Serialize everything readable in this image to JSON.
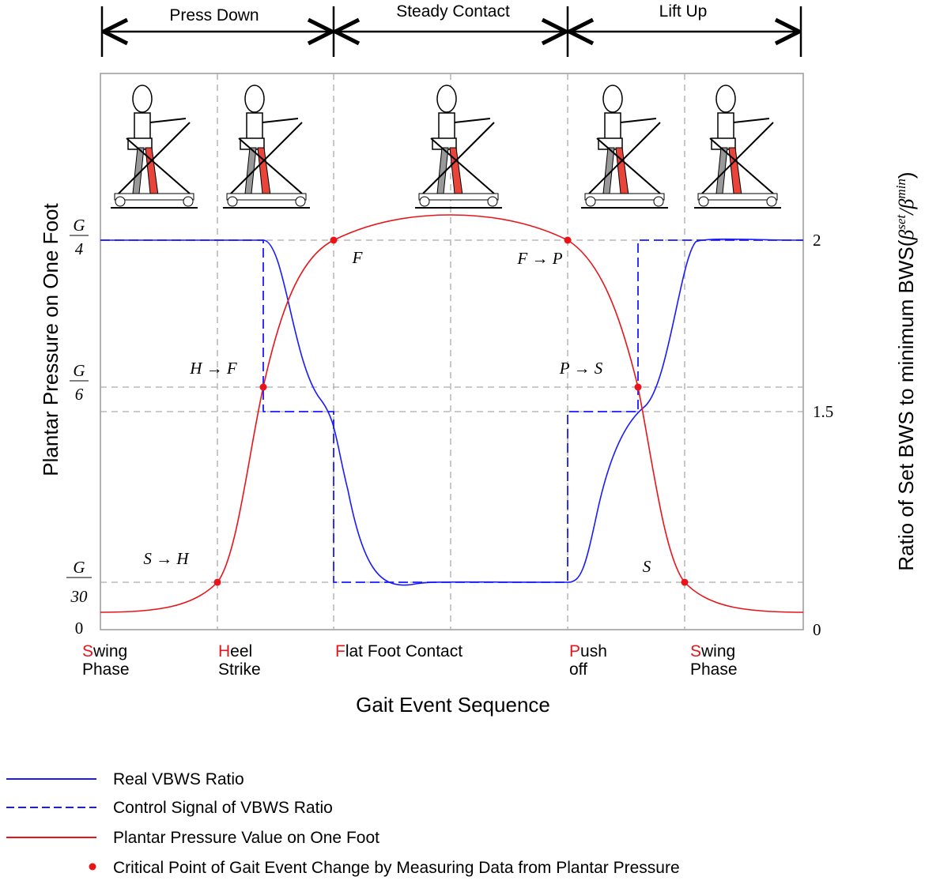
{
  "phases": [
    "Press Down",
    "Steady Contact",
    "Lift Up"
  ],
  "y_label": "Plantar Pressure on One Foot",
  "y2_label": {
    "text": "Ratio of Set BWS to minimum BWS(",
    "beta1": "β",
    "sup1": "set",
    "slash": "/",
    "beta2": "β",
    "sup2": "min",
    "close": ")"
  },
  "y_ticks": [
    {
      "num": "G",
      "den": "4"
    },
    {
      "num": "G",
      "den": "6"
    },
    {
      "num": "G",
      "den": "30"
    },
    "0"
  ],
  "y2_ticks": [
    "2",
    "1.5",
    "0"
  ],
  "annotations": [
    "S → H",
    "H → F",
    "F",
    "F → P",
    "P → S",
    "S"
  ],
  "events": [
    {
      "initial": "S",
      "rest": "wing",
      "line2": "Phase"
    },
    {
      "initial": "H",
      "rest": "eel",
      "line2": "Strike"
    },
    {
      "initial": "F",
      "rest": "lat Foot Contact"
    },
    {
      "initial": "P",
      "rest": "ush",
      "line2": "off"
    },
    {
      "initial": "S",
      "rest": "wing",
      "line2": "Phase"
    }
  ],
  "x_label": "Gait Event Sequence",
  "legend": [
    "Real VBWS Ratio",
    "Control Signal of VBWS Ratio",
    "Plantar Pressure Value on One Foot",
    "Critical Point of Gait Event Change by Measuring Data from Plantar Pressure"
  ]
}
